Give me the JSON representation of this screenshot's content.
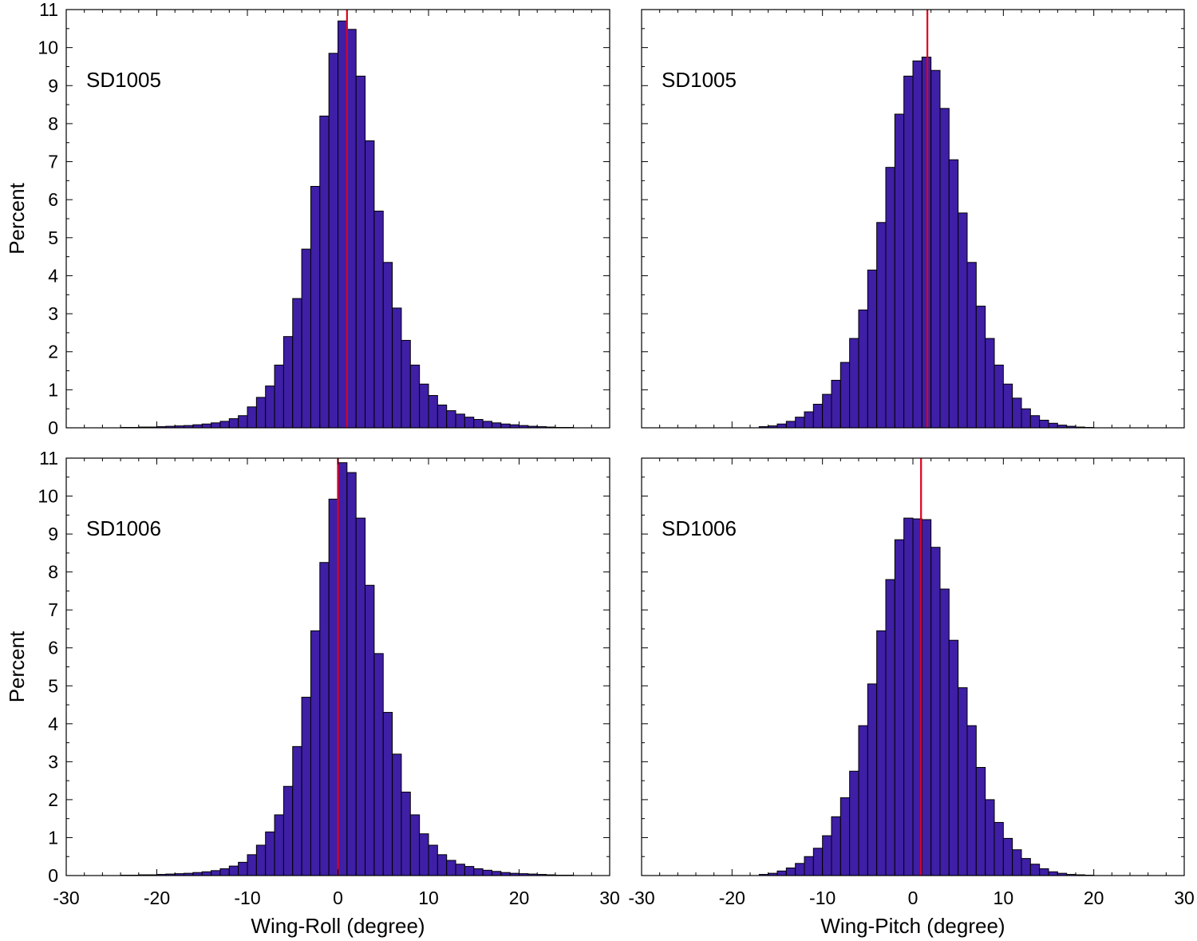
{
  "chart_data": [
    {
      "type": "bar",
      "panel_label": "SD1005",
      "xlabel": "",
      "ylabel": "Percent",
      "xlim": [
        -30,
        30
      ],
      "ylim": [
        0,
        11
      ],
      "x_ticks": [
        -30,
        -20,
        -10,
        0,
        10,
        20,
        30
      ],
      "y_ticks": [
        0,
        1,
        2,
        3,
        4,
        5,
        6,
        7,
        8,
        9,
        10,
        11
      ],
      "show_x_tick_labels": false,
      "show_y_tick_labels": true,
      "bin_width": 1,
      "bin_centers": [
        -23.5,
        -22.5,
        -21.5,
        -20.5,
        -19.5,
        -18.5,
        -17.5,
        -16.5,
        -15.5,
        -14.5,
        -13.5,
        -12.5,
        -11.5,
        -10.5,
        -9.5,
        -8.5,
        -7.5,
        -6.5,
        -5.5,
        -4.5,
        -3.5,
        -2.5,
        -1.5,
        -0.5,
        0.5,
        1.5,
        2.5,
        3.5,
        4.5,
        5.5,
        6.5,
        7.5,
        8.5,
        9.5,
        10.5,
        11.5,
        12.5,
        13.5,
        14.5,
        15.5,
        16.5,
        17.5,
        18.5,
        19.5,
        20.5,
        21.5,
        22.5,
        23.5,
        24.5,
        25.5
      ],
      "values": [
        0.01,
        0.01,
        0.02,
        0.02,
        0.03,
        0.04,
        0.05,
        0.06,
        0.08,
        0.1,
        0.13,
        0.17,
        0.24,
        0.32,
        0.55,
        0.8,
        1.1,
        1.65,
        2.4,
        3.4,
        4.7,
        6.35,
        8.2,
        9.85,
        10.7,
        10.48,
        9.25,
        7.55,
        5.7,
        4.35,
        3.15,
        2.3,
        1.65,
        1.15,
        0.85,
        0.6,
        0.45,
        0.36,
        0.28,
        0.22,
        0.17,
        0.13,
        0.1,
        0.08,
        0.06,
        0.04,
        0.03,
        0.02,
        0.01,
        0.01
      ],
      "marker_line_x": 1.0,
      "bar_color": "#3e1fa6",
      "marker_color": "#e0001b"
    },
    {
      "type": "bar",
      "panel_label": "SD1005",
      "xlabel": "",
      "ylabel": "",
      "xlim": [
        -30,
        30
      ],
      "ylim": [
        0,
        11
      ],
      "x_ticks": [
        -30,
        -20,
        -10,
        0,
        10,
        20,
        30
      ],
      "y_ticks": [
        0,
        1,
        2,
        3,
        4,
        5,
        6,
        7,
        8,
        9,
        10,
        11
      ],
      "show_x_tick_labels": false,
      "show_y_tick_labels": false,
      "bin_width": 1,
      "bin_centers": [
        -16.5,
        -15.5,
        -14.5,
        -13.5,
        -12.5,
        -11.5,
        -10.5,
        -9.5,
        -8.5,
        -7.5,
        -6.5,
        -5.5,
        -4.5,
        -3.5,
        -2.5,
        -1.5,
        -0.5,
        0.5,
        1.5,
        2.5,
        3.5,
        4.5,
        5.5,
        6.5,
        7.5,
        8.5,
        9.5,
        10.5,
        11.5,
        12.5,
        13.5,
        14.5,
        15.5,
        16.5,
        17.5,
        18.5,
        19.5
      ],
      "values": [
        0.03,
        0.05,
        0.1,
        0.17,
        0.28,
        0.42,
        0.62,
        0.88,
        1.25,
        1.72,
        2.35,
        3.1,
        4.15,
        5.4,
        6.85,
        8.25,
        9.25,
        9.65,
        9.75,
        9.4,
        8.4,
        7.05,
        5.65,
        4.35,
        3.2,
        2.35,
        1.65,
        1.15,
        0.78,
        0.5,
        0.32,
        0.2,
        0.12,
        0.07,
        0.04,
        0.02,
        0.01
      ],
      "marker_line_x": 1.6,
      "bar_color": "#3e1fa6",
      "marker_color": "#e0001b"
    },
    {
      "type": "bar",
      "panel_label": "SD1006",
      "xlabel": "Wing-Roll (degree)",
      "ylabel": "Percent",
      "xlim": [
        -30,
        30
      ],
      "ylim": [
        0,
        11
      ],
      "x_ticks": [
        -30,
        -20,
        -10,
        0,
        10,
        20,
        30
      ],
      "y_ticks": [
        0,
        1,
        2,
        3,
        4,
        5,
        6,
        7,
        8,
        9,
        10,
        11
      ],
      "show_x_tick_labels": true,
      "show_y_tick_labels": true,
      "bin_width": 1,
      "bin_centers": [
        -23.5,
        -22.5,
        -21.5,
        -20.5,
        -19.5,
        -18.5,
        -17.5,
        -16.5,
        -15.5,
        -14.5,
        -13.5,
        -12.5,
        -11.5,
        -10.5,
        -9.5,
        -8.5,
        -7.5,
        -6.5,
        -5.5,
        -4.5,
        -3.5,
        -2.5,
        -1.5,
        -0.5,
        0.5,
        1.5,
        2.5,
        3.5,
        4.5,
        5.5,
        6.5,
        7.5,
        8.5,
        9.5,
        10.5,
        11.5,
        12.5,
        13.5,
        14.5,
        15.5,
        16.5,
        17.5,
        18.5,
        19.5,
        20.5,
        21.5,
        22.5,
        23.5,
        24.5,
        25.5
      ],
      "values": [
        0.01,
        0.01,
        0.02,
        0.02,
        0.03,
        0.04,
        0.05,
        0.06,
        0.08,
        0.1,
        0.13,
        0.18,
        0.25,
        0.35,
        0.55,
        0.8,
        1.15,
        1.6,
        2.35,
        3.4,
        4.7,
        6.45,
        8.25,
        9.92,
        10.88,
        10.62,
        9.42,
        7.65,
        5.85,
        4.3,
        3.2,
        2.2,
        1.6,
        1.1,
        0.8,
        0.55,
        0.4,
        0.3,
        0.24,
        0.18,
        0.14,
        0.11,
        0.08,
        0.06,
        0.05,
        0.04,
        0.03,
        0.02,
        0.01,
        0.01
      ],
      "marker_line_x": 0.0,
      "bar_color": "#3e1fa6",
      "marker_color": "#e0001b"
    },
    {
      "type": "bar",
      "panel_label": "SD1006",
      "xlabel": "Wing-Pitch (degree)",
      "ylabel": "",
      "xlim": [
        -30,
        30
      ],
      "ylim": [
        0,
        11
      ],
      "x_ticks": [
        -30,
        -20,
        -10,
        0,
        10,
        20,
        30
      ],
      "y_ticks": [
        0,
        1,
        2,
        3,
        4,
        5,
        6,
        7,
        8,
        9,
        10,
        11
      ],
      "show_x_tick_labels": true,
      "show_y_tick_labels": false,
      "bin_width": 1,
      "bin_centers": [
        -16.5,
        -15.5,
        -14.5,
        -13.5,
        -12.5,
        -11.5,
        -10.5,
        -9.5,
        -8.5,
        -7.5,
        -6.5,
        -5.5,
        -4.5,
        -3.5,
        -2.5,
        -1.5,
        -0.5,
        0.5,
        1.5,
        2.5,
        3.5,
        4.5,
        5.5,
        6.5,
        7.5,
        8.5,
        9.5,
        10.5,
        11.5,
        12.5,
        13.5,
        14.5,
        15.5,
        16.5,
        17.5,
        18.5,
        19.5
      ],
      "values": [
        0.03,
        0.06,
        0.12,
        0.2,
        0.32,
        0.5,
        0.72,
        1.05,
        1.55,
        2.05,
        2.75,
        3.95,
        5.05,
        6.45,
        7.8,
        8.85,
        9.42,
        9.4,
        9.38,
        8.65,
        7.55,
        6.2,
        4.95,
        3.95,
        2.85,
        2.0,
        1.4,
        0.98,
        0.68,
        0.45,
        0.3,
        0.18,
        0.1,
        0.06,
        0.03,
        0.02,
        0.01
      ],
      "marker_line_x": 0.9,
      "bar_color": "#3e1fa6",
      "marker_color": "#e0001b"
    }
  ]
}
